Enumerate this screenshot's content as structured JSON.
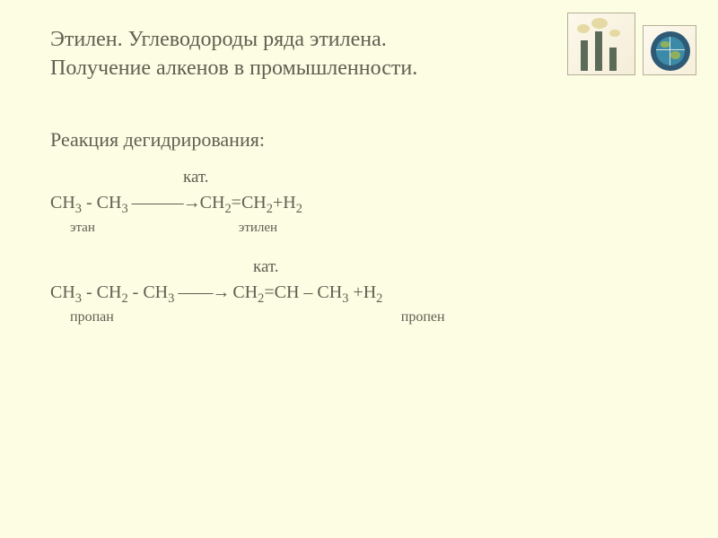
{
  "colors": {
    "background": "#fdfde4",
    "text": "#5f6050",
    "icon_bg_light": "#fdf8ec",
    "icon_bg_dark": "#f4edd7",
    "icon_border": "#b3b195",
    "stack": "#5b6b57",
    "smoke": "#e0d392",
    "globe_outer": "#2e5a76",
    "globe_inner": "#3a8aa8",
    "globe_grid": "#d9e4e0",
    "land": "#8faf5c"
  },
  "typography": {
    "title_size": 24,
    "subtitle_size": 22,
    "equation_size": 20,
    "kat_size": 19,
    "label_size": 15,
    "font_family": "Times New Roman"
  },
  "title": {
    "line1": "Этилен. Углеводороды ряда этилена.",
    "line2": "Получение алкенов в промышленности."
  },
  "subtitle": "Реакция дегидрирования:",
  "catalyst_label": "кат.",
  "eq1": {
    "lhs_prefix": "CH",
    "sub3a": "3",
    "dash1": "  -  ",
    "mid": "CH",
    "sub3b": "3",
    "arrow": " ———→",
    "rhs1": "CH",
    "sub2a": "2",
    "dbl": "=",
    "rhs2": "CH",
    "sub2b": "2",
    "plus": "+",
    "h": "H",
    "sub2c": "2"
  },
  "labels1": {
    "ethane": "этан",
    "ethylene": "этилен"
  },
  "eq2": {
    "p1": "CH",
    "s1": "3",
    "d1": " - ",
    "p2": "CH",
    "s2": "2",
    "d2": " - ",
    "p3": "CH",
    "s3": "3",
    "arrow": " ——→ ",
    "p4": "CH",
    "s4": "2",
    "dbl": "=",
    "p5": "CH",
    "d3": " – ",
    "p6": "CH",
    "s5": "3",
    "plus": "  +",
    "h": "H",
    "s6": "2"
  },
  "labels2": {
    "propane": "пропан",
    "propene": "пропен"
  }
}
